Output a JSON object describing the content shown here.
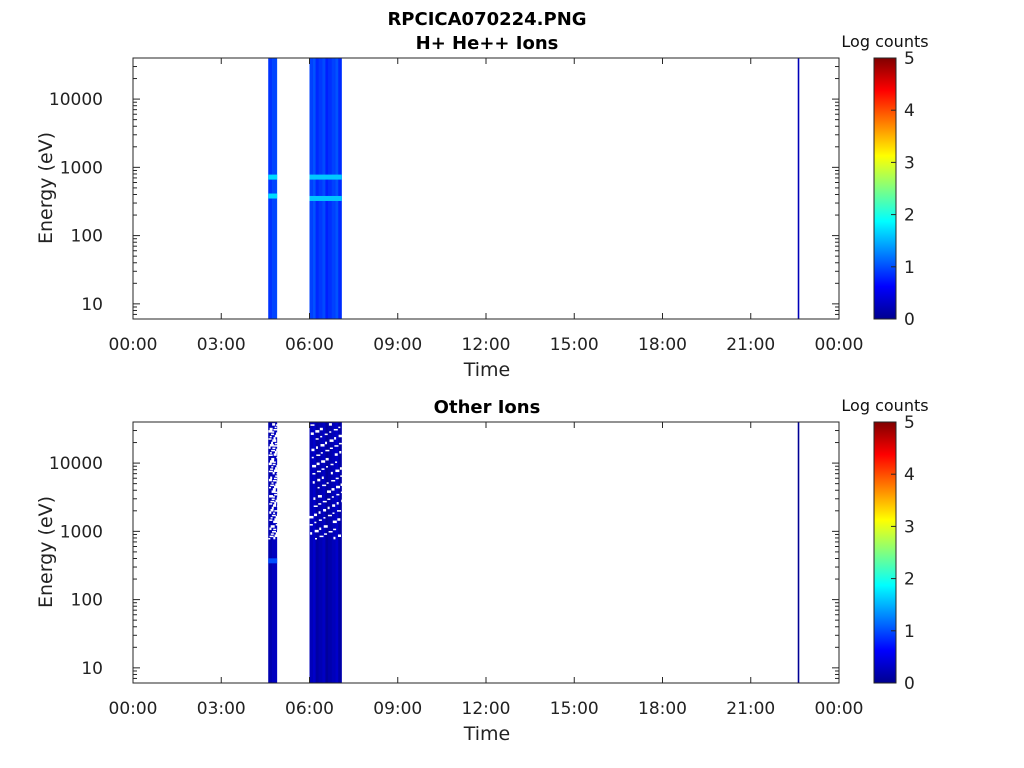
{
  "figure": {
    "title": "RPCICA070224.PNG"
  },
  "colors": {
    "jet": [
      "#00008f",
      "#0000ff",
      "#0080ff",
      "#00ffff",
      "#80ff80",
      "#ffff00",
      "#ff8000",
      "#ff0000",
      "#800000"
    ],
    "spectrogram_blue": "#0033e6",
    "spectrogram_dark": "#000a9a",
    "axis": "#262626"
  },
  "chart_data": [
    {
      "type": "heatmap",
      "title": "H+ He++ Ions",
      "xlabel": "Time",
      "ylabel": "Energy (eV)",
      "x_ticks": [
        "00:00",
        "03:00",
        "06:00",
        "09:00",
        "12:00",
        "15:00",
        "18:00",
        "21:00",
        "00:00"
      ],
      "x_range_hours": [
        0,
        24
      ],
      "y_scale": "log",
      "y_ticks": [
        "10",
        "100",
        "1000",
        "10000"
      ],
      "y_tick_values": [
        10,
        100,
        1000,
        10000
      ],
      "y_range_ev": [
        6,
        40000
      ],
      "colorbar": {
        "label": "Log counts",
        "ticks": [
          "0",
          "1",
          "2",
          "3",
          "4",
          "5"
        ],
        "range": [
          0,
          5
        ]
      },
      "data_bands": [
        {
          "start_hour": 4.6,
          "end_hour": 4.9,
          "level": 1.0,
          "emission_lines_ev": [
            380,
            720
          ]
        },
        {
          "start_hour": 6.0,
          "end_hour": 7.1,
          "level": 0.9,
          "emission_lines_ev": [
            350,
            720
          ]
        },
        {
          "start_hour": 22.6,
          "end_hour": 22.65,
          "level": 0.3,
          "emission_lines_ev": []
        }
      ],
      "gap_hours": [
        [
          4.9,
          6.0
        ]
      ]
    },
    {
      "type": "heatmap",
      "title": "Other Ions",
      "xlabel": "Time",
      "ylabel": "Energy (eV)",
      "x_ticks": [
        "00:00",
        "03:00",
        "06:00",
        "09:00",
        "12:00",
        "15:00",
        "18:00",
        "21:00",
        "00:00"
      ],
      "x_range_hours": [
        0,
        24
      ],
      "y_scale": "log",
      "y_ticks": [
        "10",
        "100",
        "1000",
        "10000"
      ],
      "y_tick_values": [
        10,
        100,
        1000,
        10000
      ],
      "y_range_ev": [
        6,
        40000
      ],
      "colorbar": {
        "label": "Log counts",
        "ticks": [
          "0",
          "1",
          "2",
          "3",
          "4",
          "5"
        ],
        "range": [
          0,
          5
        ]
      },
      "data_bands": [
        {
          "start_hour": 4.6,
          "end_hour": 4.9,
          "level": 0.3,
          "emission_lines_ev": [
            370
          ]
        },
        {
          "start_hour": 6.0,
          "end_hour": 7.1,
          "level": 0.2,
          "emission_lines_ev": []
        },
        {
          "start_hour": 22.6,
          "end_hour": 22.65,
          "level": 0.1,
          "emission_lines_ev": []
        }
      ],
      "gap_hours": [
        [
          4.9,
          6.0
        ]
      ]
    }
  ]
}
